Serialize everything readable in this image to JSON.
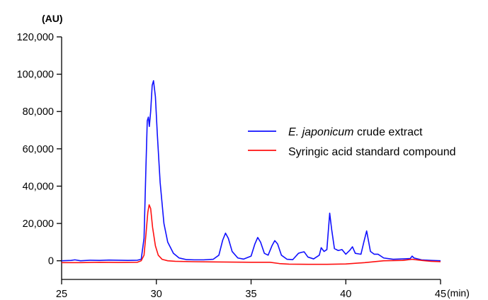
{
  "chart_data": {
    "type": "line",
    "title": "",
    "ylabel": "(AU)",
    "xlabel": "(min)",
    "xlim": [
      25,
      45
    ],
    "ylim": [
      -10000,
      120000
    ],
    "x_ticks": [
      25,
      30,
      35,
      40,
      45
    ],
    "x_tick_labels": [
      "25",
      "30",
      "35",
      "40",
      "45"
    ],
    "y_ticks": [
      0,
      20000,
      40000,
      60000,
      80000,
      100000,
      120000
    ],
    "y_tick_labels": [
      "0",
      "20,000",
      "40,000",
      "60,000",
      "80,000",
      "100,000",
      "120,000"
    ],
    "grid": false,
    "legend_position": "center-right",
    "series": [
      {
        "name_italic": "E. japonicum",
        "name_rest": " crude extract",
        "color": "#1010ff",
        "x": [
          25.0,
          25.5,
          25.7,
          26.0,
          26.5,
          27.0,
          27.5,
          28.0,
          28.5,
          29.0,
          29.2,
          29.35,
          29.45,
          29.52,
          29.58,
          29.63,
          29.7,
          29.78,
          29.85,
          29.95,
          30.05,
          30.2,
          30.4,
          30.6,
          30.9,
          31.2,
          31.6,
          32.0,
          32.5,
          33.0,
          33.3,
          33.5,
          33.65,
          33.8,
          34.0,
          34.3,
          34.6,
          35.0,
          35.2,
          35.35,
          35.5,
          35.7,
          35.9,
          36.1,
          36.25,
          36.4,
          36.6,
          36.9,
          37.2,
          37.5,
          37.65,
          37.8,
          38.0,
          38.3,
          38.6,
          38.7,
          38.85,
          39.0,
          39.1,
          39.15,
          39.25,
          39.4,
          39.6,
          39.8,
          40.0,
          40.2,
          40.35,
          40.5,
          40.8,
          40.95,
          41.1,
          41.3,
          41.5,
          41.7,
          42.0,
          42.5,
          43.0,
          43.4,
          43.5,
          43.6,
          44.0,
          44.5,
          45.0
        ],
        "y": [
          0,
          200,
          500,
          0,
          300,
          200,
          400,
          300,
          200,
          300,
          800,
          12000,
          50000,
          75000,
          77000,
          72000,
          80000,
          94000,
          96500,
          88000,
          68000,
          42000,
          20000,
          10000,
          4000,
          1500,
          600,
          500,
          500,
          800,
          3000,
          11000,
          14800,
          12000,
          5000,
          1500,
          900,
          2500,
          9000,
          12500,
          10000,
          4000,
          3000,
          8000,
          10800,
          9000,
          3000,
          800,
          600,
          4000,
          4500,
          4800,
          2000,
          1000,
          3000,
          7000,
          5000,
          6000,
          19000,
          25500,
          17000,
          6500,
          5500,
          6000,
          3500,
          5500,
          7500,
          4000,
          3500,
          10000,
          16000,
          5000,
          3500,
          3500,
          1500,
          800,
          1000,
          1200,
          2500,
          1500,
          500,
          200,
          0
        ]
      },
      {
        "name": "Syringic acid standard compound",
        "color": "#ff1010",
        "x": [
          25.0,
          26.0,
          27.0,
          28.0,
          29.0,
          29.2,
          29.35,
          29.45,
          29.55,
          29.62,
          29.7,
          29.8,
          29.95,
          30.1,
          30.3,
          30.6,
          31.0,
          32.0,
          33.0,
          34.0,
          35.0,
          36.0,
          36.5,
          37.0,
          38.0,
          39.0,
          40.0,
          41.0,
          42.0,
          43.0,
          43.5,
          44.0,
          44.5,
          45.0
        ],
        "y": [
          -1000,
          -1000,
          -800,
          -900,
          -800,
          0,
          3000,
          14000,
          26000,
          30000,
          28000,
          18000,
          8000,
          3000,
          800,
          0,
          -300,
          -500,
          -600,
          -700,
          -800,
          -800,
          -1500,
          -1800,
          -1900,
          -1900,
          -1700,
          -1000,
          0,
          200,
          800,
          200,
          -300,
          -500
        ]
      }
    ]
  }
}
